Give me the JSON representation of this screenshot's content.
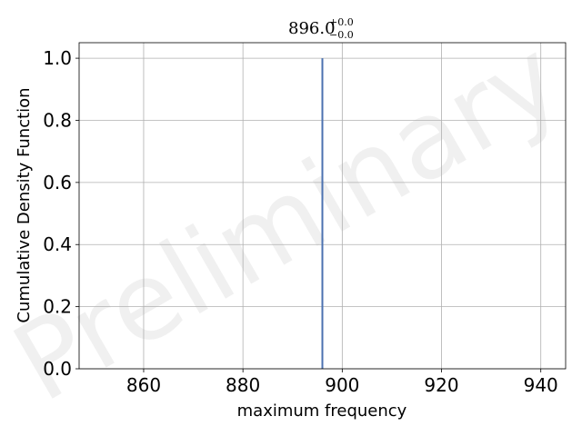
{
  "chart_data": {
    "type": "line",
    "title": {
      "value": "896.0",
      "upper": "+0.0",
      "lower": "−0.0"
    },
    "xlabel": "maximum frequency",
    "ylabel": "Cumulative Density Function",
    "xlim": [
      847,
      945
    ],
    "ylim": [
      0,
      1.05
    ],
    "xticks": [
      860,
      880,
      900,
      920,
      940
    ],
    "xtick_labels": [
      "860",
      "880",
      "900",
      "920",
      "940"
    ],
    "yticks": [
      0.0,
      0.2,
      0.4,
      0.6,
      0.8,
      1.0
    ],
    "ytick_labels": [
      "0.0",
      "0.2",
      "0.4",
      "0.6",
      "0.8",
      "1.0"
    ],
    "grid": true,
    "series": [
      {
        "color": "#4c72b0",
        "x": [
          896.0,
          896.0
        ],
        "y": [
          0.0,
          1.0
        ]
      }
    ],
    "watermark": "Preliminary"
  }
}
